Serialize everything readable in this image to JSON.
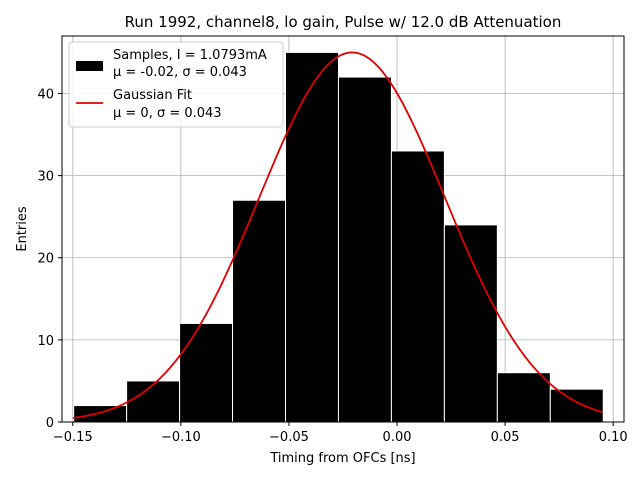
{
  "chart_data": {
    "type": "bar",
    "title": "Run 1992, channel8, lo gain, Pulse w/ 12.0 dB Attenuation",
    "xlabel": "Timing from OFCs [ns]",
    "ylabel": "Entries",
    "xlim": [
      -0.155,
      0.105
    ],
    "ylim": [
      0,
      47
    ],
    "xticks": [
      -0.15,
      -0.1,
      -0.05,
      0.0,
      0.05,
      0.1
    ],
    "xtick_labels": [
      "−0.15",
      "−0.10",
      "−0.05",
      "0.00",
      "0.05",
      "0.10"
    ],
    "yticks": [
      0,
      10,
      20,
      30,
      40
    ],
    "ytick_labels": [
      "0",
      "10",
      "20",
      "30",
      "40"
    ],
    "grid": true,
    "bins": {
      "edges": [
        -0.1496,
        -0.1251,
        -0.1006,
        -0.0761,
        -0.0516,
        -0.0271,
        -0.0026,
        0.0219,
        0.0464,
        0.0709,
        0.0954
      ],
      "counts": [
        2,
        5,
        12,
        27,
        45,
        42,
        33,
        24,
        6,
        4
      ]
    },
    "gaussian_fit": {
      "mu_offset": -0.0208,
      "sigma": 0.043,
      "amplitude": 45,
      "x_range": [
        -0.15,
        0.095
      ],
      "color": "#e00000"
    },
    "bar_color": "#000000",
    "legend": {
      "placement": "top-left",
      "entries": [
        {
          "line1": "Samples, I = 1.0793mA",
          "line2": "μ = -0.02, σ = 0.043"
        },
        {
          "line1": "Gaussian Fit",
          "line2": "μ = 0, σ = 0.043"
        }
      ]
    }
  }
}
